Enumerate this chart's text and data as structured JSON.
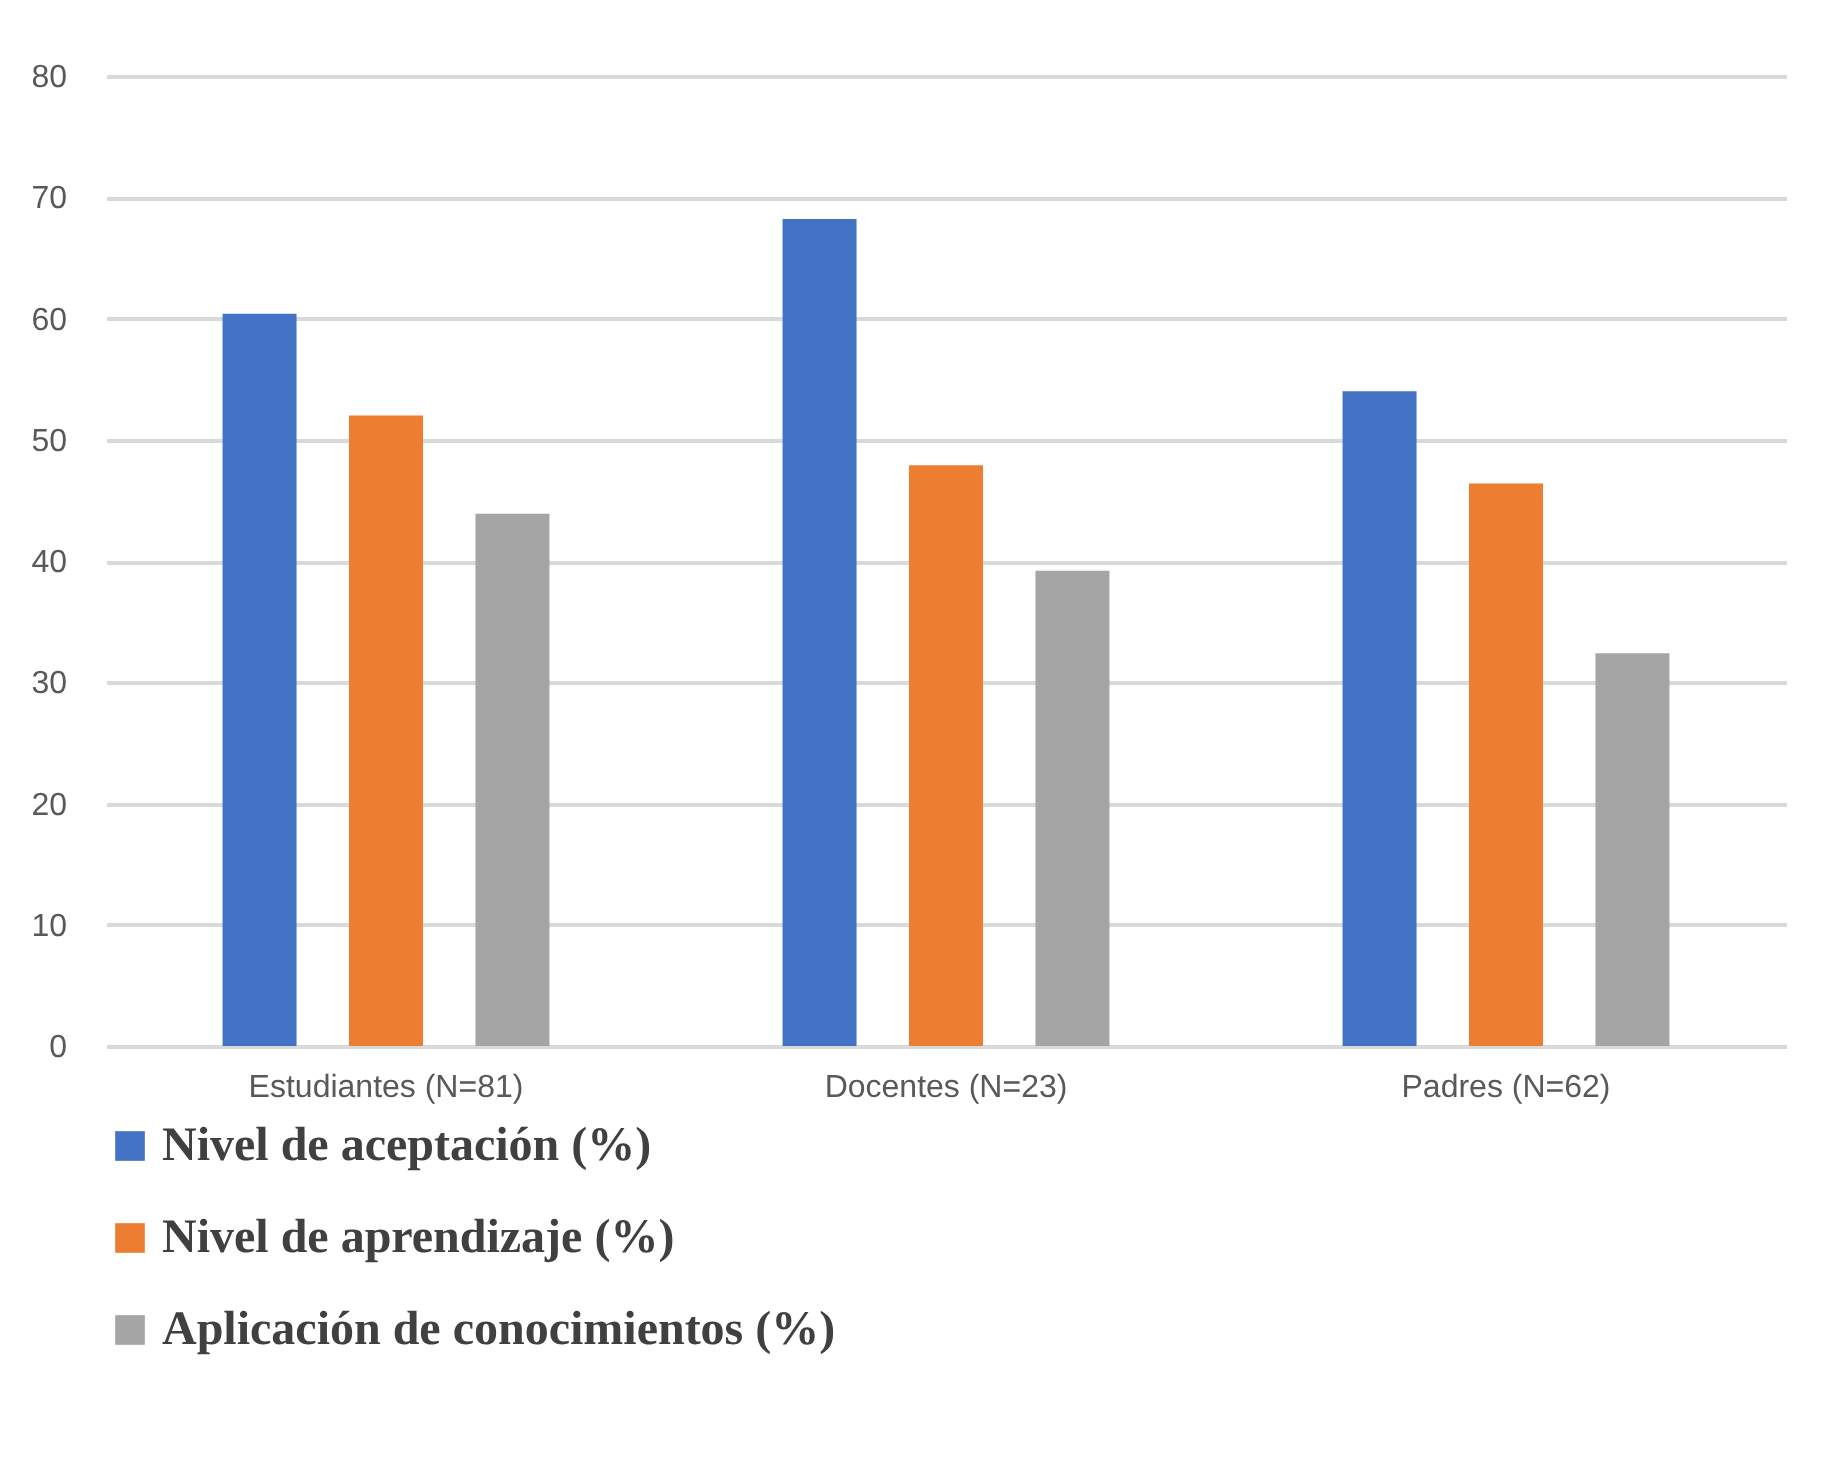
{
  "chart_data": {
    "type": "bar",
    "categories": [
      "Estudiantes (N=81)",
      "Docentes (N=23)",
      "Padres (N=62)"
    ],
    "series": [
      {
        "name": "Nivel de aceptación (%)",
        "color": "#4472c4",
        "values": [
          60.4,
          68.2,
          54.0
        ]
      },
      {
        "name": "Nivel de aprendizaje (%)",
        "color": "#ed7d31",
        "values": [
          52.0,
          47.9,
          46.4
        ]
      },
      {
        "name": "Aplicación de conocimientos (%)",
        "color": "#a5a5a5",
        "values": [
          43.9,
          39.2,
          32.4
        ]
      }
    ],
    "ylim": [
      0,
      80
    ],
    "yticks": [
      0,
      10,
      20,
      30,
      40,
      50,
      60,
      70,
      80
    ],
    "grid": "y",
    "legend": "bottom"
  }
}
